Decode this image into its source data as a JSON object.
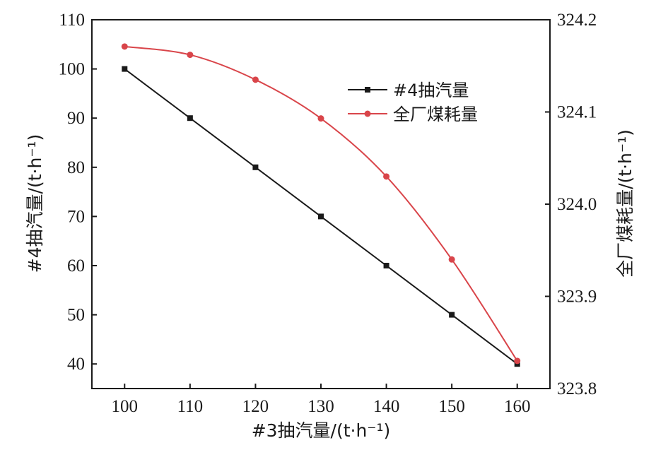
{
  "chart_data": {
    "type": "line",
    "x": [
      100,
      110,
      120,
      130,
      140,
      150,
      160
    ],
    "xlabel": "#3抽汽量/(t·h⁻¹)",
    "xlim": [
      95,
      165
    ],
    "xticks": [
      "100",
      "110",
      "120",
      "130",
      "140",
      "150",
      "160"
    ],
    "y_left": {
      "label": "#4抽汽量/(t·h⁻¹)",
      "lim": [
        35,
        110
      ],
      "ticks": [
        "40",
        "50",
        "60",
        "70",
        "80",
        "90",
        "100",
        "110"
      ]
    },
    "y_right": {
      "label": "全厂煤耗量/(t·h⁻¹)",
      "lim": [
        323.8,
        324.2
      ],
      "ticks": [
        "323.8",
        "323.9",
        "324.0",
        "324.1",
        "324.2"
      ]
    },
    "series": [
      {
        "name": "#4抽汽量",
        "axis": "left",
        "color": "#1a1a1a",
        "marker": "square",
        "smooth": false,
        "values": [
          100,
          90,
          80,
          70,
          60,
          50,
          40
        ]
      },
      {
        "name": "全厂煤耗量",
        "axis": "right",
        "color": "#d9454a",
        "marker": "circle",
        "smooth": true,
        "values": [
          324.171,
          324.162,
          324.135,
          324.093,
          324.03,
          323.94,
          323.83
        ]
      }
    ],
    "legend_position": "top-right",
    "grid": false
  }
}
